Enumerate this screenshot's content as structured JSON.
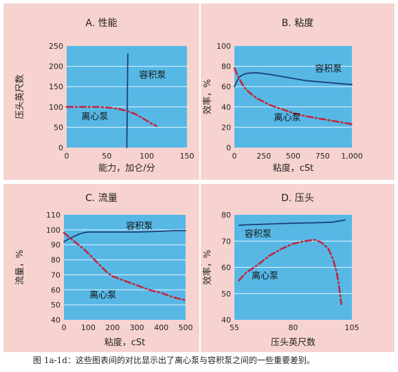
{
  "colors": {
    "panel_bg": "#f7d3cf",
    "plot_bg": "#57b8e6",
    "grid": "#e6f4fb",
    "pd_line": "#1d3f79",
    "cf_line": "#c2253b"
  },
  "caption": "图 1a-1d：这些图表间的对比显示出了离心泵与容积泵之间的一些重要差别。",
  "chart_data": [
    {
      "type": "line",
      "title": "A. 性能",
      "xlabel": "能力，加仑/分",
      "ylabel": "压头英尺数",
      "xlim": [
        0,
        150
      ],
      "ylim": [
        0,
        250
      ],
      "xticks": [
        0,
        50,
        100,
        150
      ],
      "yticks": [
        0,
        50,
        100,
        150,
        200,
        250
      ],
      "xtick_labels": [
        "0",
        "50",
        "100",
        "150"
      ],
      "ytick_labels": [
        "0",
        "50",
        "100",
        "150",
        "200",
        "250"
      ],
      "grid": "horizontal",
      "series": [
        {
          "name": "容积泵",
          "style": "solid",
          "color": "#1d3f79",
          "x": [
            75,
            75.3,
            75.6,
            75.8,
            76,
            76.3
          ],
          "y": [
            0,
            50,
            100,
            150,
            200,
            230
          ]
        },
        {
          "name": "离心泵",
          "style": "dashdot",
          "color": "#c2253b",
          "x": [
            0,
            20,
            40,
            55,
            65,
            75,
            85,
            95,
            105,
            112
          ],
          "y": [
            100,
            100,
            100,
            98,
            95,
            90,
            83,
            72,
            60,
            53
          ]
        }
      ],
      "annotations": [
        {
          "text": "容积泵",
          "x": 107,
          "y": 180
        },
        {
          "text": "离心泵",
          "x": 35,
          "y": 78
        }
      ]
    },
    {
      "type": "line",
      "title": "B. 粘度",
      "xlabel": "粘度，cSt",
      "ylabel": "效率，%",
      "xlim": [
        0,
        1000
      ],
      "ylim": [
        0,
        100
      ],
      "xticks": [
        0,
        250,
        500,
        750,
        1000
      ],
      "yticks": [
        0,
        20,
        40,
        60,
        80,
        100
      ],
      "xtick_labels": [
        "0",
        "250",
        "500",
        "750",
        "1,000"
      ],
      "ytick_labels": [
        "0",
        "20",
        "40",
        "60",
        "80",
        "100"
      ],
      "grid": "horizontal",
      "series": [
        {
          "name": "容积泵",
          "style": "solid",
          "color": "#1d3f79",
          "x": [
            0,
            20,
            40,
            60,
            80,
            100,
            150,
            200,
            300,
            400,
            500,
            600,
            700,
            800,
            900,
            1000
          ],
          "y": [
            60,
            65,
            69,
            71,
            72,
            73,
            73.5,
            73.5,
            72,
            70,
            68,
            66,
            65,
            64,
            63,
            62
          ]
        },
        {
          "name": "离心泵",
          "style": "dashdot",
          "color": "#c2253b",
          "x": [
            0,
            25,
            50,
            75,
            100,
            150,
            200,
            250,
            300,
            400,
            500,
            600,
            700,
            800,
            900,
            1000
          ],
          "y": [
            78,
            72,
            66,
            61,
            57,
            52,
            48,
            45,
            42,
            38,
            34,
            31,
            29,
            27,
            25,
            23
          ]
        }
      ],
      "annotations": [
        {
          "text": "容积泵",
          "x": 800,
          "y": 78
        },
        {
          "text": "离心泵",
          "x": 450,
          "y": 30
        }
      ]
    },
    {
      "type": "line",
      "title": "C. 流量",
      "xlabel": "粘度，cSt",
      "ylabel": "流量，%",
      "xlim": [
        0,
        500
      ],
      "ylim": [
        40,
        110
      ],
      "xticks": [
        0,
        100,
        200,
        300,
        400,
        500
      ],
      "yticks": [
        40,
        50,
        60,
        70,
        80,
        90,
        100,
        110
      ],
      "xtick_labels": [
        "0",
        "100",
        "200",
        "300",
        "400",
        "500"
      ],
      "ytick_labels": [
        "40",
        "50",
        "60",
        "70",
        "80",
        "90",
        "100",
        "110"
      ],
      "grid": "horizontal",
      "series": [
        {
          "name": "容积泵",
          "style": "solid",
          "color": "#1d3f79",
          "x": [
            0,
            20,
            40,
            60,
            80,
            100,
            150,
            200,
            300,
            400,
            450,
            500
          ],
          "y": [
            92,
            94,
            95.5,
            97,
            98,
            98.5,
            98.5,
            98.5,
            98.5,
            99,
            99.5,
            99.5
          ]
        },
        {
          "name": "离心泵",
          "style": "dashdot",
          "color": "#c2253b",
          "x": [
            0,
            30,
            60,
            90,
            120,
            150,
            175,
            200,
            250,
            300,
            350,
            400,
            450,
            500
          ],
          "y": [
            98,
            94,
            90,
            86,
            81,
            76,
            72,
            69,
            66,
            63,
            60,
            58,
            55,
            53
          ]
        }
      ],
      "annotations": [
        {
          "text": "容积泵",
          "x": 310,
          "y": 103
        },
        {
          "text": "离心泵",
          "x": 160,
          "y": 57
        }
      ]
    },
    {
      "type": "line",
      "title": "D. 压头",
      "xlabel": "压头英尺数",
      "ylabel": "效率，%",
      "xlim": [
        55,
        105
      ],
      "ylim": [
        40,
        80
      ],
      "xticks": [
        55,
        80,
        105
      ],
      "yticks": [
        40,
        50,
        60,
        70,
        80
      ],
      "xtick_labels": [
        "55",
        "80",
        "105"
      ],
      "ytick_labels": [
        "40",
        "50",
        "60",
        "70",
        "80"
      ],
      "grid": "horizontal",
      "series": [
        {
          "name": "容积泵",
          "style": "solid",
          "color": "#1d3f79",
          "x": [
            57,
            60,
            70,
            80,
            90,
            97,
            99,
            101,
            102
          ],
          "y": [
            76,
            76.2,
            76.5,
            76.8,
            77,
            77.2,
            77.6,
            77.8,
            78
          ]
        },
        {
          "name": "离心泵",
          "style": "dashdot",
          "color": "#c2253b",
          "x": [
            57,
            60,
            65,
            70,
            75,
            80,
            85,
            89,
            92,
            95,
            97,
            98.5,
            99.5,
            100.5
          ],
          "y": [
            55,
            58,
            61,
            64.5,
            67,
            69,
            70,
            70.5,
            69.5,
            67,
            63,
            58,
            53,
            46
          ]
        }
      ],
      "annotations": [
        {
          "text": "容积泵",
          "x": 65,
          "y": 73
        },
        {
          "text": "离心泵",
          "x": 68,
          "y": 57
        }
      ]
    }
  ]
}
